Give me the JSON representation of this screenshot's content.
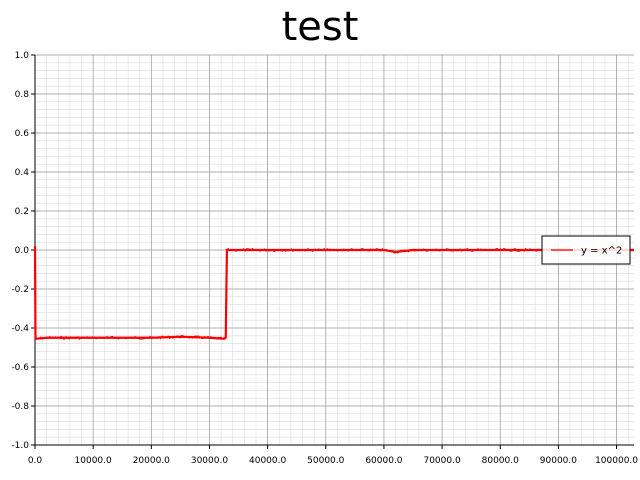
{
  "chart_data": {
    "type": "line",
    "title": "test",
    "xlabel": "",
    "ylabel": "",
    "xlim": [
      0,
      103000
    ],
    "ylim": [
      -1.0,
      1.0
    ],
    "x_ticks": [
      0,
      10000,
      20000,
      30000,
      40000,
      50000,
      60000,
      70000,
      80000,
      90000,
      100000
    ],
    "x_tick_labels": [
      "0.0",
      "10000.0",
      "20000.0",
      "30000.0",
      "40000.0",
      "50000.0",
      "60000.0",
      "70000.0",
      "80000.0",
      "90000.0",
      "100000.0"
    ],
    "y_ticks": [
      -1.0,
      -0.8,
      -0.6,
      -0.4,
      -0.2,
      0.0,
      0.2,
      0.4,
      0.6,
      0.8,
      1.0
    ],
    "y_tick_labels": [
      "-1.0",
      "-0.8",
      "-0.6",
      "-0.4",
      "-0.2",
      "0.0",
      "0.2",
      "0.4",
      "0.6",
      "0.8",
      "1.0"
    ],
    "grid": true,
    "legend_position": "right",
    "series": [
      {
        "name": "y = x^2",
        "color": "#ff0000",
        "x": [
          0,
          80,
          200,
          2000,
          10000,
          20000,
          25000,
          30000,
          32500,
          32800,
          33000,
          40000,
          50000,
          60000,
          62000,
          65000,
          70000,
          80000,
          90000,
          100000,
          103000
        ],
        "y": [
          0.02,
          -0.45,
          -0.455,
          -0.45,
          -0.45,
          -0.45,
          -0.445,
          -0.45,
          -0.455,
          -0.45,
          0.0,
          0.0,
          0.0,
          0.0,
          -0.01,
          0.0,
          0.0,
          0.0,
          0.0,
          0.0,
          0.0
        ]
      }
    ]
  }
}
